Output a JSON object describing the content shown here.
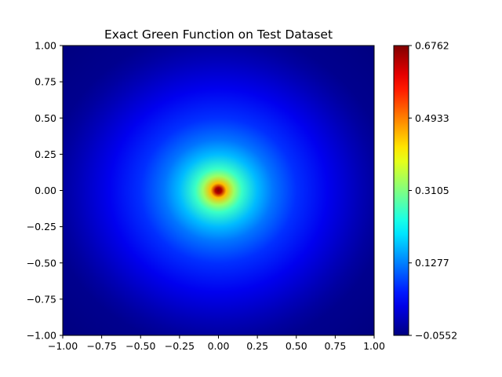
{
  "chart_data": {
    "type": "heatmap",
    "title": "Exact Green Function on Test Dataset",
    "xlabel": "",
    "ylabel": "",
    "xlim": [
      -1.0,
      1.0
    ],
    "ylim": [
      -1.0,
      1.0
    ],
    "x_ticks": [
      "−1.00",
      "−0.75",
      "−0.50",
      "−0.25",
      "0.00",
      "0.25",
      "0.50",
      "0.75",
      "1.00"
    ],
    "x_tick_values": [
      -1.0,
      -0.75,
      -0.5,
      -0.25,
      0.0,
      0.25,
      0.5,
      0.75,
      1.0
    ],
    "y_ticks": [
      "1.00",
      "0.75",
      "0.50",
      "0.25",
      "0.00",
      "−0.25",
      "−0.50",
      "−0.75",
      "−1.00"
    ],
    "y_tick_values": [
      1.0,
      0.75,
      0.5,
      0.25,
      0.0,
      -0.25,
      -0.5,
      -0.75,
      -1.0
    ],
    "colormap": "jet",
    "colorbar": {
      "min": -0.0552,
      "max": 0.6762,
      "ticks": [
        "0.6762",
        "0.4933",
        "0.3105",
        "0.1277",
        "−0.0552"
      ],
      "tick_values": [
        0.6762,
        0.4933,
        0.3105,
        0.1277,
        -0.0552
      ]
    },
    "field": {
      "center": [
        0.0,
        0.0
      ],
      "samples": [
        {
          "r": 0.0,
          "value": 0.6762
        },
        {
          "r": 0.02,
          "value": 0.64
        },
        {
          "r": 0.05,
          "value": 0.45
        },
        {
          "r": 0.1,
          "value": 0.33
        },
        {
          "r": 0.15,
          "value": 0.26
        },
        {
          "r": 0.25,
          "value": 0.17
        },
        {
          "r": 0.35,
          "value": 0.12
        },
        {
          "r": 0.5,
          "value": 0.07
        },
        {
          "r": 0.7,
          "value": 0.025
        },
        {
          "r": 0.9,
          "value": -0.015
        },
        {
          "r": 1.0,
          "value": -0.032
        },
        {
          "r": 1.1,
          "value": -0.045
        },
        {
          "r": 1.4142,
          "value": -0.0552
        }
      ]
    },
    "grid": false,
    "legend": "none"
  }
}
